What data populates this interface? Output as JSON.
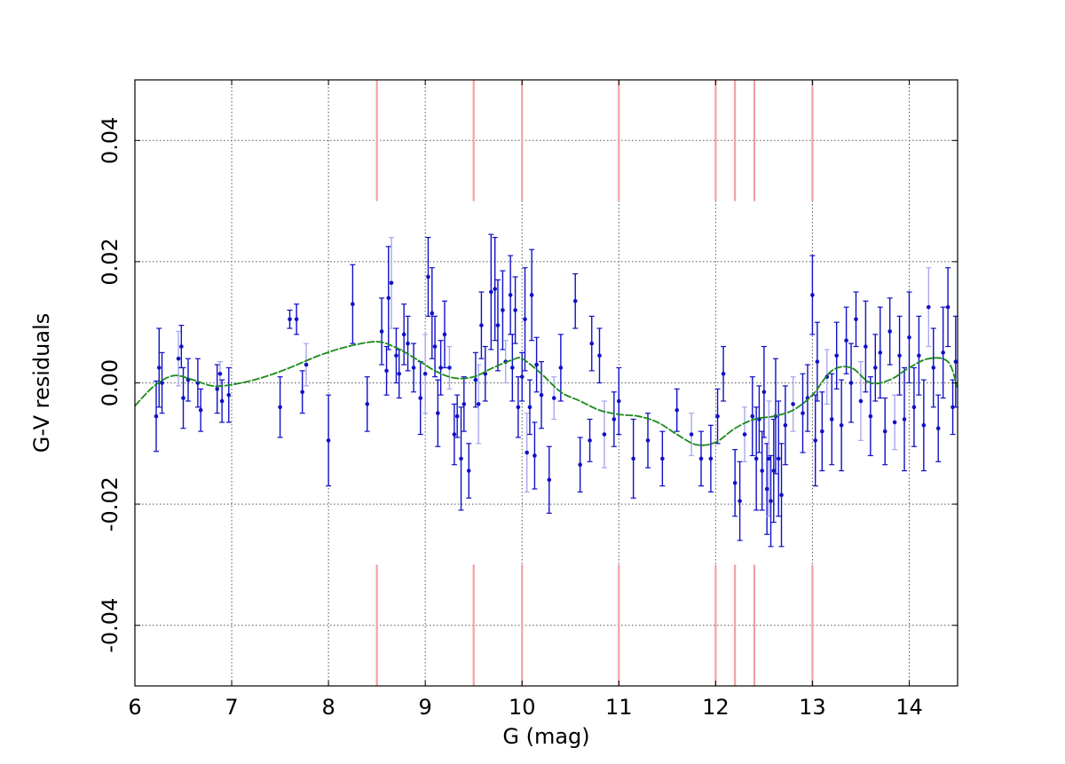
{
  "chart_data": {
    "type": "scatter",
    "title": "",
    "xlabel": "G (mag)",
    "ylabel": "G-V residuals",
    "xlim": [
      6,
      14.5
    ],
    "ylim": [
      -0.05,
      0.05
    ],
    "xticks": [
      6,
      7,
      8,
      9,
      10,
      11,
      12,
      13,
      14
    ],
    "yticks": [
      -0.04,
      -0.02,
      0.0,
      0.02,
      0.04
    ],
    "ytick_labels": [
      "-0.04",
      "-0.02",
      "0.00",
      "0.02",
      "0.04"
    ],
    "grid": true,
    "legend": "none",
    "colors": {
      "points": "#1010c8",
      "errorbars_light": "#a8a8ee",
      "fit_line": "#1a8a1a",
      "markers": "#f4a0a0",
      "grid": "#555555"
    },
    "reference_lines_x": [
      8.5,
      9.5,
      10.0,
      11.0,
      12.0,
      12.2,
      12.4,
      13.0
    ],
    "reference_line_segments_y": [
      [
        -0.05,
        -0.03
      ],
      [
        0.03,
        0.05
      ]
    ],
    "fit_curve": {
      "name": "",
      "x": [
        6.0,
        6.2,
        6.4,
        6.6,
        6.8,
        7.0,
        7.3,
        7.6,
        7.9,
        8.2,
        8.5,
        8.7,
        8.9,
        9.1,
        9.3,
        9.5,
        9.7,
        9.9,
        10.0,
        10.2,
        10.4,
        10.6,
        10.8,
        11.0,
        11.2,
        11.4,
        11.6,
        11.8,
        12.0,
        12.2,
        12.4,
        12.6,
        12.8,
        13.0,
        13.2,
        13.4,
        13.6,
        13.8,
        14.0,
        14.2,
        14.4,
        14.5
      ],
      "y": [
        -0.0038,
        -0.0005,
        0.0012,
        0.0005,
        -0.0005,
        -0.0003,
        0.0008,
        0.0025,
        0.0045,
        0.006,
        0.0068,
        0.0058,
        0.004,
        0.002,
        0.0008,
        0.001,
        0.0025,
        0.0038,
        0.004,
        0.0015,
        -0.0015,
        -0.003,
        -0.0045,
        -0.0052,
        -0.0055,
        -0.0065,
        -0.0085,
        -0.0102,
        -0.0098,
        -0.0075,
        -0.006,
        -0.0055,
        -0.0045,
        -0.002,
        0.002,
        0.0025,
        0.0,
        0.0005,
        0.0025,
        0.004,
        0.0035,
        -0.0008
      ]
    },
    "series": [
      {
        "name": "",
        "points": [
          [
            6.22,
            -0.0055,
            0.0058
          ],
          [
            6.25,
            0.0025,
            0.0065
          ],
          [
            6.28,
            0.0,
            0.005
          ],
          [
            6.45,
            0.004,
            0.0045
          ],
          [
            6.48,
            0.006,
            0.0035
          ],
          [
            6.5,
            -0.0025,
            0.005
          ],
          [
            6.55,
            0.0005,
            0.0035
          ],
          [
            6.65,
            0.0,
            0.004
          ],
          [
            6.68,
            -0.0045,
            0.0035
          ],
          [
            6.85,
            -0.001,
            0.004
          ],
          [
            6.88,
            0.0015,
            0.002
          ],
          [
            6.9,
            -0.003,
            0.0035
          ],
          [
            6.97,
            -0.002,
            0.0045
          ],
          [
            7.5,
            -0.004,
            0.005
          ],
          [
            7.6,
            0.0105,
            0.0015
          ],
          [
            7.67,
            0.0105,
            0.0025
          ],
          [
            7.73,
            -0.0015,
            0.0035
          ],
          [
            7.77,
            0.003,
            0.0035
          ],
          [
            8.0,
            -0.0095,
            0.0075
          ],
          [
            8.25,
            0.013,
            0.0065
          ],
          [
            8.4,
            -0.0035,
            0.0045
          ],
          [
            8.55,
            0.0085,
            0.0055
          ],
          [
            8.6,
            0.002,
            0.004
          ],
          [
            8.62,
            0.014,
            0.0085
          ],
          [
            8.65,
            0.0165,
            0.0075
          ],
          [
            8.7,
            0.0045,
            0.0045
          ],
          [
            8.73,
            0.0015,
            0.004
          ],
          [
            8.78,
            0.008,
            0.005
          ],
          [
            8.82,
            0.0065,
            0.0045
          ],
          [
            8.88,
            0.0025,
            0.004
          ],
          [
            8.95,
            -0.0025,
            0.006
          ],
          [
            9.0,
            0.0015,
            0.0065
          ],
          [
            9.03,
            0.0175,
            0.0065
          ],
          [
            9.07,
            0.0115,
            0.0075
          ],
          [
            9.1,
            0.006,
            0.005
          ],
          [
            9.13,
            -0.005,
            0.0055
          ],
          [
            9.16,
            0.0025,
            0.0045
          ],
          [
            9.2,
            0.008,
            0.0055
          ],
          [
            9.25,
            0.0025,
            0.0035
          ],
          [
            9.3,
            -0.0085,
            0.005
          ],
          [
            9.33,
            -0.0055,
            0.0035
          ],
          [
            9.37,
            -0.0125,
            0.0085
          ],
          [
            9.4,
            -0.0035,
            0.0045
          ],
          [
            9.45,
            -0.0145,
            0.0045
          ],
          [
            9.52,
            0.0005,
            0.0045
          ],
          [
            9.55,
            -0.0035,
            0.0065
          ],
          [
            9.58,
            0.0095,
            0.0055
          ],
          [
            9.62,
            0.0015,
            0.0045
          ],
          [
            9.68,
            0.015,
            0.0095
          ],
          [
            9.72,
            0.0155,
            0.0085
          ],
          [
            9.75,
            0.0095,
            0.0075
          ],
          [
            9.8,
            0.012,
            0.0065
          ],
          [
            9.83,
            0.0035,
            0.0035
          ],
          [
            9.88,
            0.0145,
            0.0065
          ],
          [
            9.9,
            0.0025,
            0.0055
          ],
          [
            9.93,
            0.012,
            0.0055
          ],
          [
            9.96,
            -0.004,
            0.005
          ],
          [
            10.0,
            0.001,
            0.004
          ],
          [
            10.03,
            0.0105,
            0.0085
          ],
          [
            10.05,
            -0.0115,
            0.0065
          ],
          [
            10.08,
            -0.004,
            0.0045
          ],
          [
            10.1,
            0.0145,
            0.0075
          ],
          [
            10.13,
            -0.012,
            0.0055
          ],
          [
            10.15,
            0.003,
            0.0045
          ],
          [
            10.2,
            -0.002,
            0.0055
          ],
          [
            10.28,
            -0.016,
            0.0055
          ],
          [
            10.33,
            -0.0025,
            0.0035
          ],
          [
            10.4,
            0.0025,
            0.0055
          ],
          [
            10.55,
            0.0135,
            0.0045
          ],
          [
            10.6,
            -0.0135,
            0.0045
          ],
          [
            10.7,
            -0.0095,
            0.0035
          ],
          [
            10.72,
            0.0065,
            0.0045
          ],
          [
            10.8,
            0.0045,
            0.0045
          ],
          [
            10.85,
            -0.0085,
            0.0055
          ],
          [
            10.95,
            -0.006,
            0.0045
          ],
          [
            11.0,
            -0.003,
            0.0055
          ],
          [
            11.15,
            -0.0125,
            0.0065
          ],
          [
            11.3,
            -0.0095,
            0.0045
          ],
          [
            11.45,
            -0.0125,
            0.0045
          ],
          [
            11.6,
            -0.0045,
            0.0035
          ],
          [
            11.75,
            -0.0085,
            0.0035
          ],
          [
            11.85,
            -0.0125,
            0.0045
          ],
          [
            11.95,
            -0.0125,
            0.0055
          ],
          [
            12.02,
            -0.0055,
            0.0045
          ],
          [
            12.08,
            0.0015,
            0.0045
          ],
          [
            12.2,
            -0.0165,
            0.0055
          ],
          [
            12.25,
            -0.0195,
            0.0065
          ],
          [
            12.3,
            -0.0085,
            0.0045
          ],
          [
            12.38,
            -0.0055,
            0.0065
          ],
          [
            12.42,
            -0.0125,
            0.0085
          ],
          [
            12.45,
            -0.006,
            0.0055
          ],
          [
            12.48,
            -0.0145,
            0.0065
          ],
          [
            12.5,
            -0.0015,
            0.0075
          ],
          [
            12.53,
            -0.0175,
            0.0075
          ],
          [
            12.55,
            -0.0125,
            0.0095
          ],
          [
            12.57,
            -0.0195,
            0.0075
          ],
          [
            12.6,
            -0.0145,
            0.0085
          ],
          [
            12.62,
            -0.0055,
            0.0095
          ],
          [
            12.65,
            -0.0125,
            0.0095
          ],
          [
            12.68,
            -0.0185,
            0.0085
          ],
          [
            12.72,
            -0.007,
            0.0065
          ],
          [
            12.8,
            -0.0035,
            0.0045
          ],
          [
            12.9,
            -0.005,
            0.0065
          ],
          [
            12.95,
            -0.0025,
            0.0055
          ],
          [
            13.0,
            0.0145,
            0.0065
          ],
          [
            13.03,
            -0.0095,
            0.0075
          ],
          [
            13.05,
            0.0035,
            0.0065
          ],
          [
            13.1,
            -0.008,
            0.0065
          ],
          [
            13.15,
            0.001,
            0.0045
          ],
          [
            13.2,
            -0.006,
            0.0075
          ],
          [
            13.25,
            0.0045,
            0.0055
          ],
          [
            13.3,
            -0.007,
            0.0075
          ],
          [
            13.35,
            0.007,
            0.0055
          ],
          [
            13.4,
            0.0,
            0.0065
          ],
          [
            13.45,
            0.0105,
            0.0045
          ],
          [
            13.5,
            -0.003,
            0.0065
          ],
          [
            13.55,
            0.006,
            0.0075
          ],
          [
            13.6,
            -0.0055,
            0.0065
          ],
          [
            13.65,
            0.0025,
            0.0055
          ],
          [
            13.7,
            0.005,
            0.0075
          ],
          [
            13.75,
            -0.008,
            0.0055
          ],
          [
            13.8,
            0.0085,
            0.0055
          ],
          [
            13.85,
            -0.0065,
            0.0045
          ],
          [
            13.9,
            0.0045,
            0.0065
          ],
          [
            13.95,
            -0.006,
            0.0085
          ],
          [
            14.0,
            0.0075,
            0.0075
          ],
          [
            14.05,
            -0.004,
            0.0065
          ],
          [
            14.1,
            0.0045,
            0.0065
          ],
          [
            14.15,
            -0.007,
            0.0075
          ],
          [
            14.2,
            0.0125,
            0.0065
          ],
          [
            14.25,
            0.0025,
            0.0065
          ],
          [
            14.3,
            -0.0075,
            0.0055
          ],
          [
            14.35,
            0.005,
            0.0075
          ],
          [
            14.4,
            0.0125,
            0.0065
          ],
          [
            14.45,
            -0.004,
            0.0045
          ],
          [
            14.48,
            0.0035,
            0.0075
          ]
        ]
      }
    ]
  }
}
